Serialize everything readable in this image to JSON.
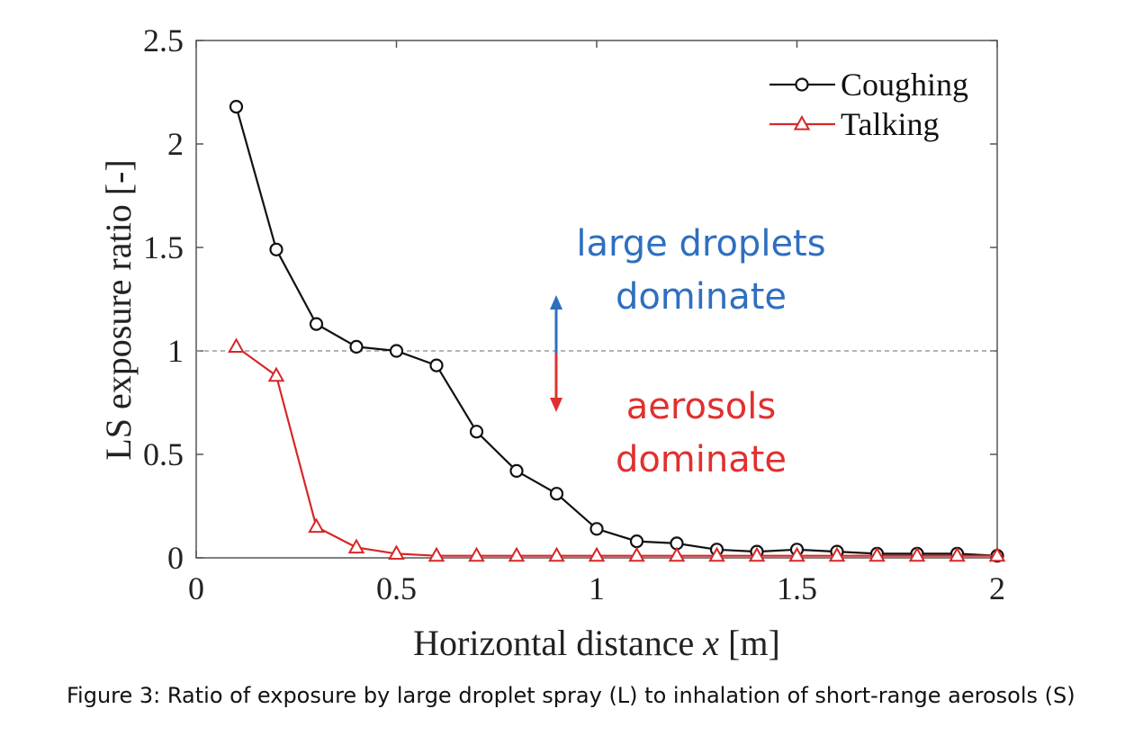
{
  "chart_data": {
    "type": "line",
    "xlabel_prefix": "Horizontal distance ",
    "xlabel_var": "x",
    "xlabel_suffix": " [m]",
    "ylabel": "LS exposure ratio [-]",
    "xlim": [
      0,
      2
    ],
    "ylim": [
      0,
      2.5
    ],
    "xticks": [
      "0",
      "0.5",
      "1",
      "1.5",
      "2"
    ],
    "yticks": [
      "0",
      "0.5",
      "1",
      "1.5",
      "2",
      "2.5"
    ],
    "grid": false,
    "legend_position": "top-right",
    "reference_line_y": 1,
    "series": [
      {
        "name": "Coughing",
        "color": "#111111",
        "marker": "circle",
        "x": [
          0.1,
          0.2,
          0.3,
          0.4,
          0.5,
          0.6,
          0.7,
          0.8,
          0.9,
          1.0,
          1.1,
          1.2,
          1.3,
          1.4,
          1.5,
          1.6,
          1.7,
          1.8,
          1.9,
          2.0
        ],
        "y": [
          2.18,
          1.49,
          1.13,
          1.02,
          1.0,
          0.93,
          0.61,
          0.42,
          0.31,
          0.14,
          0.08,
          0.07,
          0.04,
          0.03,
          0.04,
          0.03,
          0.02,
          0.02,
          0.02,
          0.01
        ]
      },
      {
        "name": "Talking",
        "color": "#d62728",
        "marker": "triangle",
        "x": [
          0.1,
          0.2,
          0.3,
          0.4,
          0.5,
          0.6,
          0.7,
          0.8,
          0.9,
          1.0,
          1.1,
          1.2,
          1.3,
          1.4,
          1.5,
          1.6,
          1.7,
          1.8,
          1.9,
          2.0
        ],
        "y": [
          1.02,
          0.88,
          0.15,
          0.05,
          0.02,
          0.01,
          0.01,
          0.01,
          0.01,
          0.01,
          0.01,
          0.01,
          0.01,
          0.01,
          0.01,
          0.01,
          0.01,
          0.01,
          0.01,
          0.01
        ]
      }
    ],
    "annotations": {
      "upper_line1": "large droplets",
      "upper_line2": "dominate",
      "upper_color": "#2e6fc0",
      "lower_line1": "aerosols",
      "lower_line2": "dominate",
      "lower_color": "#e03030"
    }
  },
  "caption": "Figure 3: Ratio of exposure by large droplet spray (L) to inhalation of short-range aerosols (S)"
}
